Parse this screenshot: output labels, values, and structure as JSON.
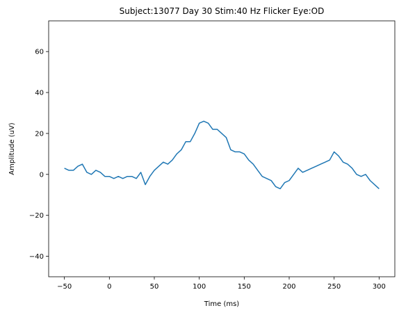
{
  "chart_data": {
    "type": "line",
    "title": "Subject:13077 Day 30 Stim:40 Hz Flicker Eye:OD",
    "x_label": "Time (ms)",
    "y_label": "Amplitude (uV)",
    "x": [
      -50,
      -45,
      -40,
      -35,
      -30,
      -25,
      -20,
      -15,
      -10,
      -5,
      0,
      5,
      10,
      15,
      20,
      25,
      30,
      35,
      40,
      45,
      50,
      55,
      60,
      65,
      70,
      75,
      80,
      85,
      90,
      95,
      100,
      105,
      110,
      115,
      120,
      125,
      130,
      135,
      140,
      145,
      150,
      155,
      160,
      165,
      170,
      175,
      180,
      185,
      190,
      195,
      200,
      205,
      210,
      215,
      220,
      225,
      230,
      235,
      240,
      245,
      250,
      255,
      260,
      265,
      270,
      275,
      280,
      285,
      290,
      295,
      300
    ],
    "values": [
      3,
      2,
      2,
      4,
      5,
      1,
      0,
      2,
      1,
      -1,
      -1,
      -2,
      -1,
      -2,
      -1,
      -1,
      -2,
      1,
      -5,
      -1,
      2,
      4,
      6,
      5,
      7,
      10,
      12,
      16,
      16,
      20,
      25,
      26,
      25,
      22,
      22,
      20,
      18,
      12,
      11,
      11,
      10,
      7,
      5,
      2,
      -1,
      -2,
      -3,
      -6,
      -7,
      -4,
      -3,
      0,
      3,
      1,
      2,
      3,
      4,
      5,
      6,
      7,
      11,
      9,
      6,
      5,
      3,
      0,
      -1,
      0,
      -3,
      -5,
      -7
    ],
    "color": "#1f77b4",
    "xlim": [
      -67.5,
      317.5
    ],
    "xticks": [
      {
        "value": -50,
        "label": "−50"
      },
      0,
      50,
      100,
      150,
      200,
      250,
      300
    ],
    "ylim": [
      -50,
      75
    ],
    "yticks": [
      {
        "value": -40,
        "label": "−40"
      },
      {
        "value": -20,
        "label": "−20"
      },
      0,
      20,
      40,
      60
    ]
  }
}
